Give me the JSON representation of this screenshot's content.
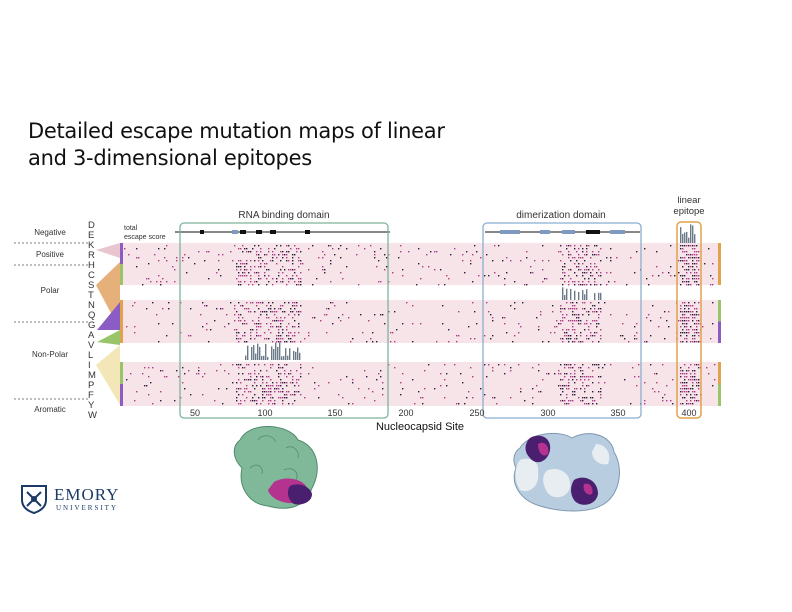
{
  "slide": {
    "title_line1": "Detailed escape mutation maps of linear",
    "title_line2": "and 3-dimensional epitopes"
  },
  "figure": {
    "domains": {
      "rna_binding": "RNA binding domain",
      "dimerization": "dimerization domain",
      "linear_line1": "linear",
      "linear_line2": "epitope"
    },
    "total_score_label_line1": "total",
    "total_score_label_line2": "escape score",
    "categories": [
      {
        "name": "Negative",
        "letters": [
          "D",
          "E"
        ]
      },
      {
        "name": "Positive",
        "letters": [
          "K",
          "R",
          "H"
        ]
      },
      {
        "name": "Polar",
        "letters": [
          "C",
          "S",
          "T",
          "N",
          "Q"
        ]
      },
      {
        "name": "Non-Polar",
        "letters": [
          "G",
          "A",
          "V",
          "L",
          "I",
          "M",
          "P"
        ]
      },
      {
        "name": "Aromatic",
        "letters": [
          "F",
          "Y",
          "W"
        ]
      }
    ],
    "x_axis_label": "Nucleocapsid Site",
    "tick_labels_left": [
      "50",
      "100",
      "150",
      "200"
    ],
    "tick_labels_mid": [
      "250",
      "300",
      "350"
    ],
    "tick_labels_right": [
      "400"
    ]
  },
  "logo": {
    "name": "EMORY",
    "sub": "UNIVERSITY"
  },
  "colors": {
    "rna_box": "#7fb39a",
    "dim_box": "#8aaed0",
    "linear_box": "#e0a24a",
    "heat_bg": "#f6e4e8",
    "mutation": "#b03a8a",
    "escape_bar": "#6b7a88",
    "rna_protein": "#7fb99a",
    "dim_protein": "#b9cde0"
  }
}
